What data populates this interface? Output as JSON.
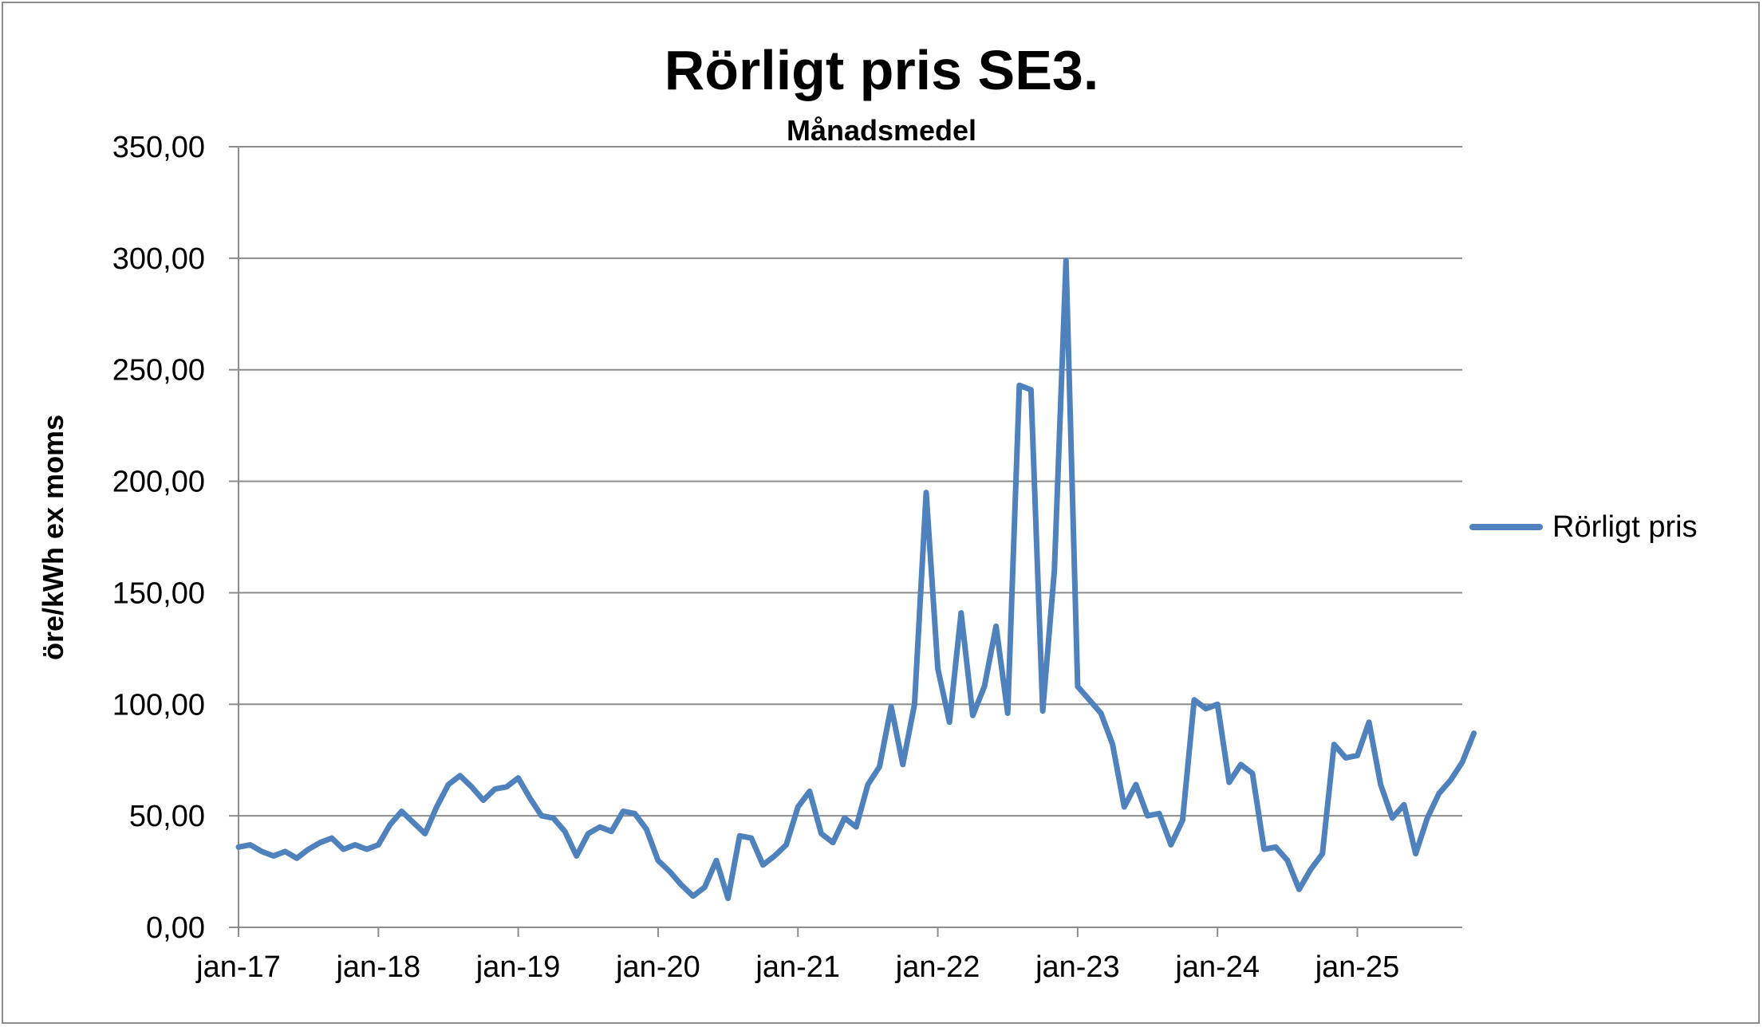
{
  "chart_data": {
    "type": "line",
    "title": "Rörligt pris SE3.",
    "subtitle": "Månadsmedel",
    "ylabel": "öre/kWh ex moms",
    "xlabel": "",
    "ylim": [
      0,
      350
    ],
    "yticks": [
      "0,00",
      "50,00",
      "100,00",
      "150,00",
      "200,00",
      "250,00",
      "300,00",
      "350,00"
    ],
    "xticks": [
      "jan-17",
      "jan-18",
      "jan-19",
      "jan-20",
      "jan-21",
      "jan-22",
      "jan-23",
      "jan-24",
      "jan-25"
    ],
    "grid": true,
    "legend_position": "right",
    "series": [
      {
        "name": "Rörligt pris",
        "color": "#4f81bd",
        "start": "2017-01",
        "values": [
          36,
          37,
          34,
          32,
          34,
          31,
          35,
          38,
          40,
          35,
          37,
          35,
          37,
          46,
          52,
          47,
          42,
          54,
          64,
          68,
          63,
          57,
          62,
          63,
          67,
          58,
          50,
          49,
          43,
          32,
          42,
          45,
          43,
          52,
          51,
          44,
          30,
          25,
          19,
          14,
          18,
          30,
          13,
          41,
          40,
          28,
          32,
          37,
          54,
          61,
          42,
          38,
          49,
          45,
          64,
          72,
          99,
          73,
          100,
          195,
          116,
          92,
          141,
          95,
          108,
          135,
          96,
          243,
          241,
          97,
          160,
          299,
          108,
          102,
          96,
          82,
          54,
          64,
          50,
          51,
          37,
          48,
          102,
          98,
          100,
          65,
          73,
          69,
          35,
          36,
          30,
          17,
          26,
          33,
          82,
          76,
          77,
          92,
          64,
          49,
          55,
          33,
          49,
          60,
          66,
          74,
          87
        ]
      }
    ]
  }
}
